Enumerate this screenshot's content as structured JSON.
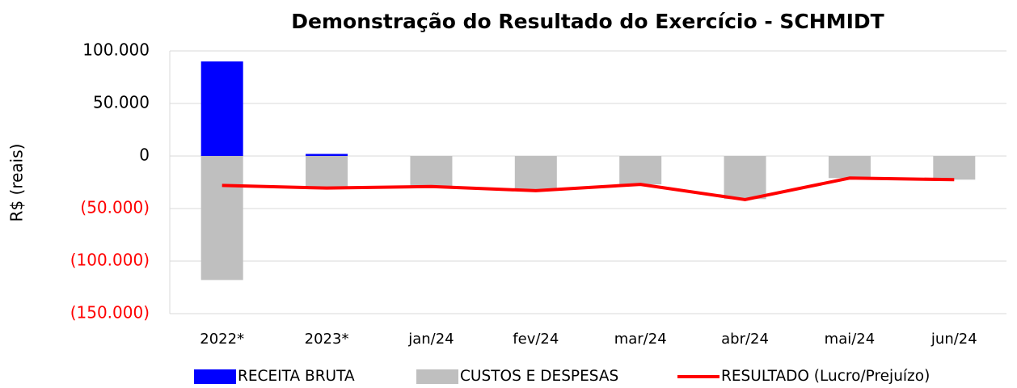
{
  "chart_data": {
    "type": "bar",
    "title": "Demonstração do Resultado do Exercício - SCHMIDT",
    "y_label": "R$ (reais)",
    "categories": [
      "2022*",
      "2023*",
      "jan/24",
      "fev/24",
      "mar/24",
      "abr/24",
      "mai/24",
      "jun/24"
    ],
    "series": [
      {
        "name": "RECEITA BRUTA",
        "type": "bar",
        "color": "#0000ff",
        "values": [
          90000,
          2000,
          0,
          0,
          0,
          0,
          0,
          0
        ]
      },
      {
        "name": "CUSTOS E DESPESAS",
        "type": "bar",
        "color": "#bfbfbf",
        "values": [
          -118000,
          -31000,
          -28500,
          -33000,
          -27000,
          -41000,
          -21000,
          -22500
        ]
      },
      {
        "name": "RESULTADO (Lucro/Prejuízo)",
        "type": "line",
        "color": "#ff0000",
        "values": [
          -28000,
          -30500,
          -29000,
          -33000,
          -27000,
          -41500,
          -21000,
          -22500
        ]
      }
    ],
    "ylim": [
      -150000,
      100000
    ],
    "yticks": [
      {
        "value": 100000,
        "label": "100.000"
      },
      {
        "value": 50000,
        "label": "50.000"
      },
      0,
      {
        "value": -50000,
        "label": "(50.000)"
      },
      {
        "value": -100000,
        "label": "(100.000)"
      },
      {
        "value": -150000,
        "label": "(150.000)"
      }
    ],
    "negative_tick_color": "#ff0000",
    "grid": true,
    "legend": "bottom"
  }
}
